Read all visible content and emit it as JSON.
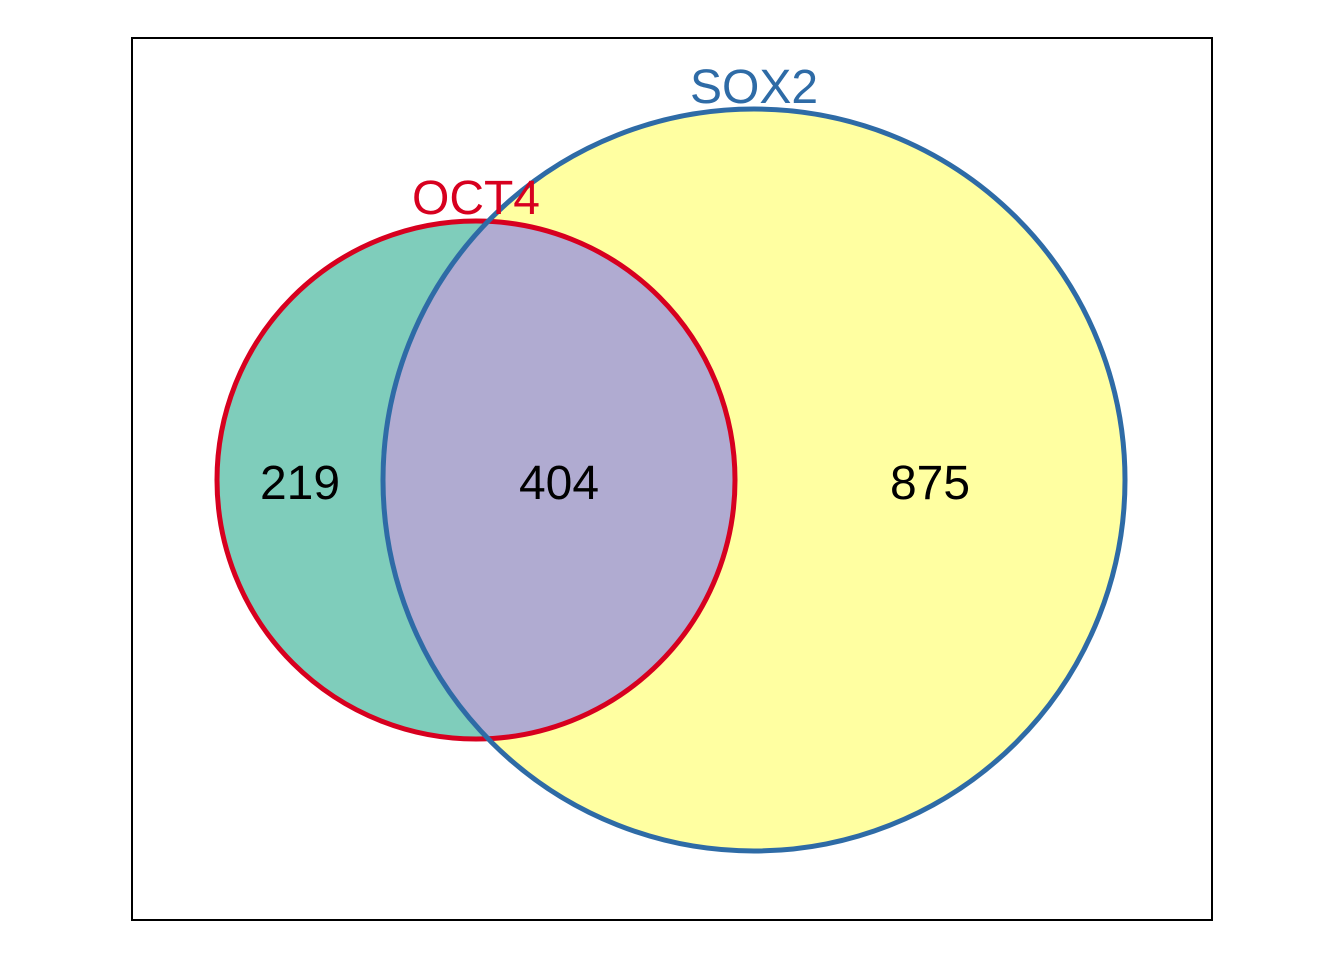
{
  "venn": {
    "sets": [
      {
        "name": "OCT4",
        "stroke": "#D7001F",
        "fill": "#7FCDBB"
      },
      {
        "name": "SOX2",
        "stroke": "#2E6BA6",
        "fill": "#FFFFA1"
      }
    ],
    "overlap_fill": "#B0ABD1",
    "frame_color": "#000000",
    "counts": {
      "oct4_only": "219",
      "both": "404",
      "sox2_only": "875"
    }
  }
}
